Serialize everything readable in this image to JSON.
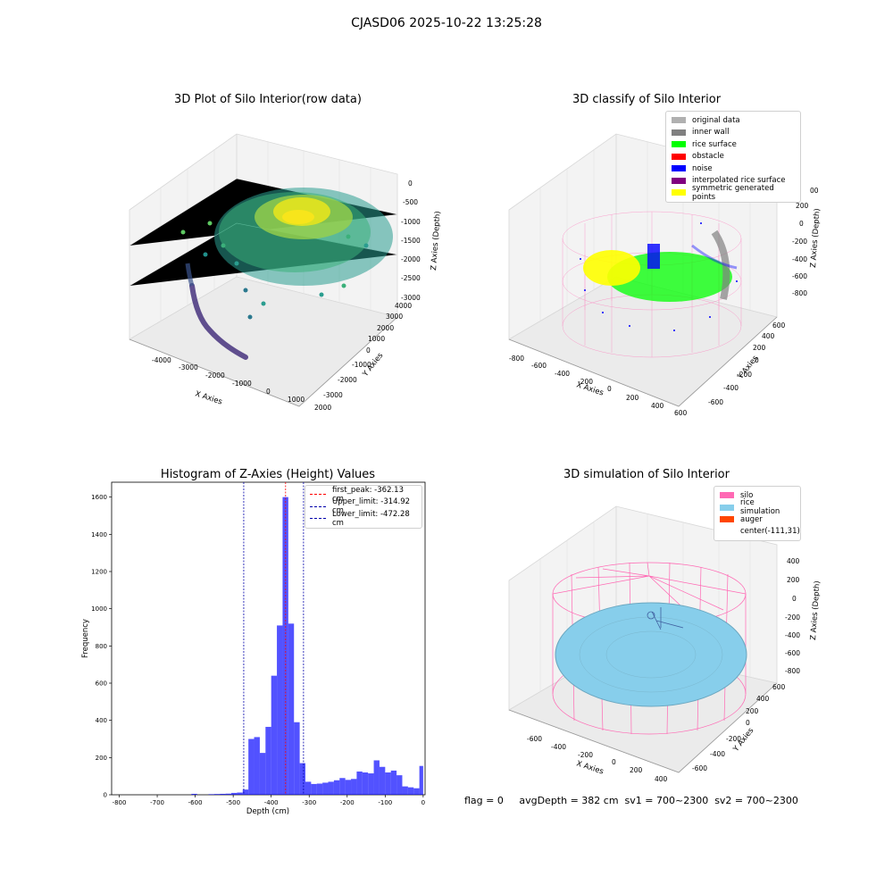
{
  "suptitle": "CJASD06 2025-10-22 13:25:28",
  "status_text": "flag = 0     avgDepth = 382 cm  sv1 = 700~2300  sv2 = 700~2300",
  "panels": {
    "raw": {
      "title": "3D Plot of Silo Interior(row data)",
      "xlabel": "X Axies",
      "ylabel": "Y Axies",
      "zlabel": "Z Axies (Depth)",
      "xticks": [
        "-4000",
        "-3000",
        "-2000",
        "-1000",
        "0",
        "1000",
        "2000"
      ],
      "yticks": [
        "-3000",
        "-2000",
        "-1000",
        "0",
        "1000",
        "2000",
        "3000",
        "4000"
      ],
      "zticks": [
        "0",
        "-500",
        "-1000",
        "-1500",
        "-2000",
        "-2500",
        "-3000"
      ]
    },
    "classify": {
      "title": "3D classify of Silo Interior",
      "xlabel": "X Axies",
      "ylabel": "Y Axies",
      "zlabel": "Z Axies (Depth)",
      "xticks": [
        "-800",
        "-600",
        "-400",
        "-200",
        "0",
        "200",
        "400",
        "600"
      ],
      "yticks": [
        "-600",
        "-400",
        "-200",
        "0",
        "200",
        "400",
        "600"
      ],
      "zticks": [
        "200",
        "0",
        "-200",
        "-400",
        "-600",
        "-800"
      ],
      "zticks_partial": "00",
      "legend": [
        {
          "label": "original data",
          "color": "#b0b0b0"
        },
        {
          "label": "inner wall",
          "color": "#808080"
        },
        {
          "label": "rice surface",
          "color": "#00ff00"
        },
        {
          "label": "obstacle",
          "color": "#ff0000"
        },
        {
          "label": "noise",
          "color": "#0000ff"
        },
        {
          "label": "interpolated rice surface",
          "color": "#800080"
        },
        {
          "label": "symmetric generated points",
          "color": "#ffff00"
        }
      ]
    },
    "simulation": {
      "title": "3D simulation of Silo Interior",
      "xlabel": "X Axies",
      "ylabel": "Y Axies",
      "zlabel": "Z Axies (Depth)",
      "xticks": [
        "-600",
        "-400",
        "-200",
        "0",
        "200",
        "400"
      ],
      "yticks": [
        "-600",
        "-400",
        "-200",
        "0",
        "200",
        "400",
        "600"
      ],
      "zticks": [
        "400",
        "200",
        "0",
        "-200",
        "-400",
        "-600",
        "-800"
      ],
      "legend": [
        {
          "label": "silo",
          "color": "#ff69b4"
        },
        {
          "label": "rice simulation",
          "color": "#87ceeb"
        },
        {
          "label": "auger",
          "color": "#ff4500"
        },
        {
          "label": "center(-111,31)",
          "color": ""
        }
      ]
    }
  },
  "chart_data": {
    "type": "bar",
    "title": "Histogram of Z-Axies (Height) Values",
    "xlabel": "Depth (cm)",
    "ylabel": "Frequency",
    "xlim": [
      -820,
      5
    ],
    "ylim": [
      0,
      1680
    ],
    "xticks": [
      -800,
      -700,
      -600,
      -500,
      -400,
      -300,
      -200,
      -100,
      0
    ],
    "yticks": [
      0,
      200,
      400,
      600,
      800,
      1000,
      1200,
      1400,
      1600
    ],
    "bar_color": "#0000ff",
    "bins": [
      {
        "x0": -610,
        "x1": -595,
        "count": 5
      },
      {
        "x0": -565,
        "x1": -550,
        "count": 3
      },
      {
        "x0": -550,
        "x1": -535,
        "count": 4
      },
      {
        "x0": -535,
        "x1": -520,
        "count": 5
      },
      {
        "x0": -520,
        "x1": -505,
        "count": 6
      },
      {
        "x0": -505,
        "x1": -490,
        "count": 10
      },
      {
        "x0": -490,
        "x1": -475,
        "count": 12
      },
      {
        "x0": -475,
        "x1": -460,
        "count": 28
      },
      {
        "x0": -460,
        "x1": -445,
        "count": 300
      },
      {
        "x0": -445,
        "x1": -430,
        "count": 310
      },
      {
        "x0": -430,
        "x1": -415,
        "count": 225
      },
      {
        "x0": -415,
        "x1": -400,
        "count": 365
      },
      {
        "x0": -400,
        "x1": -385,
        "count": 640
      },
      {
        "x0": -385,
        "x1": -370,
        "count": 910
      },
      {
        "x0": -370,
        "x1": -355,
        "count": 1600
      },
      {
        "x0": -355,
        "x1": -340,
        "count": 920
      },
      {
        "x0": -340,
        "x1": -325,
        "count": 390
      },
      {
        "x0": -325,
        "x1": -310,
        "count": 170
      },
      {
        "x0": -310,
        "x1": -295,
        "count": 70
      },
      {
        "x0": -295,
        "x1": -280,
        "count": 58
      },
      {
        "x0": -280,
        "x1": -265,
        "count": 60
      },
      {
        "x0": -265,
        "x1": -250,
        "count": 65
      },
      {
        "x0": -250,
        "x1": -235,
        "count": 70
      },
      {
        "x0": -235,
        "x1": -220,
        "count": 78
      },
      {
        "x0": -220,
        "x1": -205,
        "count": 90
      },
      {
        "x0": -205,
        "x1": -190,
        "count": 80
      },
      {
        "x0": -190,
        "x1": -175,
        "count": 85
      },
      {
        "x0": -175,
        "x1": -160,
        "count": 125
      },
      {
        "x0": -160,
        "x1": -145,
        "count": 120
      },
      {
        "x0": -145,
        "x1": -130,
        "count": 115
      },
      {
        "x0": -130,
        "x1": -115,
        "count": 185
      },
      {
        "x0": -115,
        "x1": -100,
        "count": 150
      },
      {
        "x0": -100,
        "x1": -85,
        "count": 120
      },
      {
        "x0": -85,
        "x1": -70,
        "count": 130
      },
      {
        "x0": -70,
        "x1": -55,
        "count": 105
      },
      {
        "x0": -55,
        "x1": -40,
        "count": 45
      },
      {
        "x0": -40,
        "x1": -25,
        "count": 40
      },
      {
        "x0": -25,
        "x1": -10,
        "count": 35
      },
      {
        "x0": -10,
        "x1": 0,
        "count": 155
      }
    ],
    "vlines": [
      {
        "label": "first_peak: -362.13 cm",
        "x": -362.13,
        "color": "#ff0000"
      },
      {
        "label": "Upper_limit: -314.92 cm",
        "x": -314.92,
        "color": "#0000aa"
      },
      {
        "label": "Lower_limit: -472.28 cm",
        "x": -472.28,
        "color": "#0000aa"
      }
    ]
  }
}
